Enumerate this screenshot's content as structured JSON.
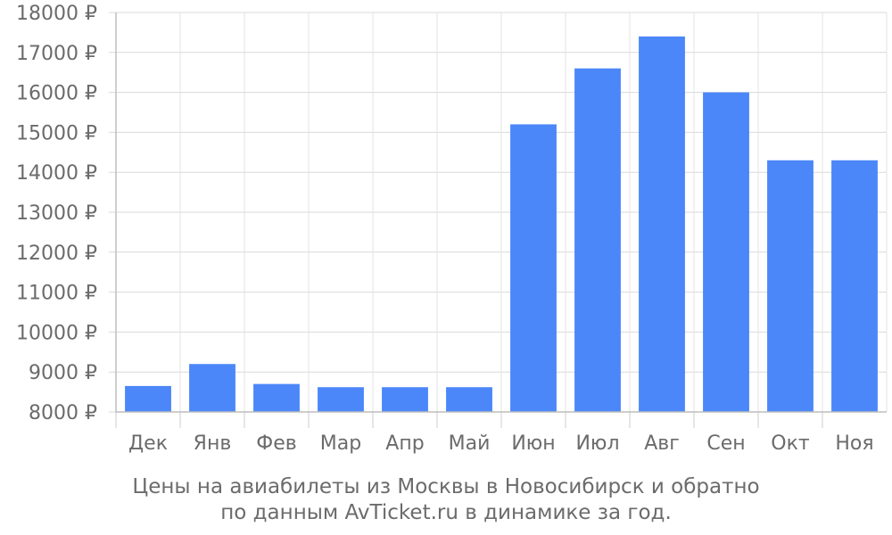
{
  "chart_data": {
    "type": "bar",
    "categories": [
      "Дек",
      "Янв",
      "Фев",
      "Мар",
      "Апр",
      "Май",
      "Июн",
      "Июл",
      "Авг",
      "Сен",
      "Окт",
      "Ноя"
    ],
    "values": [
      8650,
      9200,
      8700,
      8620,
      8620,
      8620,
      15200,
      16600,
      17400,
      16000,
      14300,
      14300
    ],
    "ylim": [
      8000,
      18000
    ],
    "ytick_labels": [
      "8000 ₽",
      "9000 ₽",
      "10000 ₽",
      "11000 ₽",
      "12000 ₽",
      "13000 ₽",
      "14000 ₽",
      "15000 ₽",
      "16000 ₽",
      "17000 ₽",
      "18000 ₽"
    ],
    "grid": true,
    "bar_color": "#4b87f9"
  },
  "caption": {
    "line1": "Цены на авиабилеты из Москвы в Новосибирск и обратно",
    "line2": "по данным AvTicket.ru в динамике за год."
  }
}
